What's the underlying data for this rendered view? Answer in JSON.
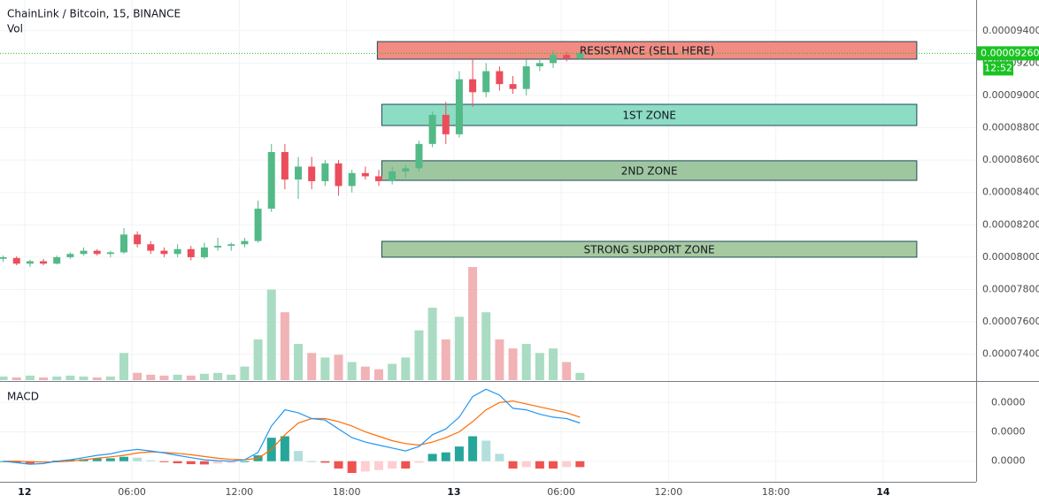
{
  "chart_data": [
    {
      "type": "candlestick",
      "title": "ChainLink / Bitcoin, 15, BINANCE",
      "volume_label": "Vol",
      "x": [
        -1.2,
        -0.45,
        0.3,
        1.05,
        1.8,
        2.55,
        3.3,
        4.05,
        4.8,
        5.55,
        6.3,
        7.05,
        7.8,
        8.55,
        9.3,
        10.05,
        10.8,
        11.55,
        12.3,
        13.05,
        13.8,
        14.55,
        15.3,
        16.05,
        16.8,
        17.55,
        18.3,
        19.05,
        19.8,
        20.55,
        21.3,
        22.05,
        22.8,
        23.55,
        24.3,
        25.05,
        25.8,
        26.55,
        27.3,
        28.05,
        28.8,
        29.55,
        30.3,
        31.05
      ],
      "open": [
        7.99e-05,
        7.995e-05,
        7.96e-05,
        7.975e-05,
        7.96e-05,
        8e-05,
        8.02e-05,
        8.04e-05,
        8.02e-05,
        8.03e-05,
        8.14e-05,
        8.08e-05,
        8.04e-05,
        8.02e-05,
        8.05e-05,
        8e-05,
        8.06e-05,
        8.07e-05,
        8.08e-05,
        8.1e-05,
        8.3e-05,
        8.65e-05,
        8.48e-05,
        8.56e-05,
        8.47e-05,
        8.58e-05,
        8.44e-05,
        8.52e-05,
        8.5e-05,
        8.47e-05,
        8.53e-05,
        8.55e-05,
        8.7e-05,
        8.88e-05,
        8.76e-05,
        9.1e-05,
        9.02e-05,
        9.15e-05,
        9.07e-05,
        9.04e-05,
        9.18e-05,
        9.2e-05,
        9.25e-05,
        9.23e-05
      ],
      "high": [
        8.01e-05,
        8.005e-05,
        7.985e-05,
        7.99e-05,
        8.01e-05,
        8.03e-05,
        8.06e-05,
        8.05e-05,
        8.04e-05,
        8.18e-05,
        8.16e-05,
        8.1e-05,
        8.06e-05,
        8.08e-05,
        8.07e-05,
        8.09e-05,
        8.12e-05,
        8.09e-05,
        8.12e-05,
        8.35e-05,
        8.7e-05,
        8.7e-05,
        8.62e-05,
        8.62e-05,
        8.6e-05,
        8.6e-05,
        8.54e-05,
        8.56e-05,
        8.54e-05,
        8.56e-05,
        8.57e-05,
        8.72e-05,
        8.9e-05,
        8.96e-05,
        9.15e-05,
        9.22e-05,
        9.2e-05,
        9.18e-05,
        9.12e-05,
        9.22e-05,
        9.23e-05,
        9.28e-05,
        9.27e-05,
        9.27e-05
      ],
      "low": [
        7.97e-05,
        7.95e-05,
        7.94e-05,
        7.95e-05,
        7.955e-05,
        7.99e-05,
        8.01e-05,
        8.01e-05,
        8e-05,
        8.02e-05,
        8.06e-05,
        8.02e-05,
        8e-05,
        8e-05,
        7.98e-05,
        7.99e-05,
        8.04e-05,
        8.04e-05,
        8.06e-05,
        8.09e-05,
        8.28e-05,
        8.42e-05,
        8.36e-05,
        8.42e-05,
        8.44e-05,
        8.38e-05,
        8.4e-05,
        8.48e-05,
        8.44e-05,
        8.45e-05,
        8.49e-05,
        8.53e-05,
        8.68e-05,
        8.7e-05,
        8.74e-05,
        8.93e-05,
        8.99e-05,
        9.03e-05,
        9.01e-05,
        9e-05,
        9.15e-05,
        9.17e-05,
        9.21e-05,
        9.22e-05
      ],
      "close": [
        8e-05,
        7.96e-05,
        7.975e-05,
        7.96e-05,
        8e-05,
        8.02e-05,
        8.04e-05,
        8.02e-05,
        8.03e-05,
        8.14e-05,
        8.08e-05,
        8.04e-05,
        8.02e-05,
        8.05e-05,
        8e-05,
        8.06e-05,
        8.07e-05,
        8.08e-05,
        8.1e-05,
        8.3e-05,
        8.65e-05,
        8.48e-05,
        8.56e-05,
        8.47e-05,
        8.58e-05,
        8.44e-05,
        8.52e-05,
        8.5e-05,
        8.47e-05,
        8.53e-05,
        8.55e-05,
        8.7e-05,
        8.88e-05,
        8.76e-05,
        9.1e-05,
        9.02e-05,
        9.15e-05,
        9.07e-05,
        9.04e-05,
        9.18e-05,
        9.2e-05,
        9.25e-05,
        9.23e-05,
        9.26e-05
      ],
      "up_color": "#53b987",
      "down_color": "#eb4d5c",
      "volume": {
        "values": [
          4,
          3,
          5,
          3,
          4,
          5,
          4,
          3,
          4,
          30,
          8,
          6,
          5,
          6,
          5,
          7,
          8,
          6,
          15,
          45,
          100,
          75,
          40,
          30,
          25,
          28,
          20,
          15,
          12,
          18,
          25,
          55,
          80,
          45,
          70,
          125,
          75,
          45,
          35,
          40,
          30,
          35,
          20,
          8
        ],
        "ylim": [
          0,
          420
        ],
        "up_color": "#a9dcc3",
        "down_color": "#f1b3b6"
      },
      "xlim": [
        -1.377,
        53.2
      ],
      "xticks": [
        {
          "value": 0,
          "label": "12"
        },
        {
          "value": 6,
          "label": "06:00"
        },
        {
          "value": 12,
          "label": "12:00"
        },
        {
          "value": 18,
          "label": "18:00"
        },
        {
          "value": 24,
          "label": "13"
        },
        {
          "value": 30,
          "label": "06:00"
        },
        {
          "value": 36,
          "label": "12:00"
        },
        {
          "value": 42,
          "label": "18:00"
        },
        {
          "value": 48,
          "label": "14"
        }
      ],
      "ylim": [
        7.24e-05,
        9.59e-05
      ],
      "yticks": [
        {
          "value": 7.4e-05,
          "label": "0.00007400"
        },
        {
          "value": 7.6e-05,
          "label": "0.00007600"
        },
        {
          "value": 7.8e-05,
          "label": "0.00007800"
        },
        {
          "value": 8e-05,
          "label": "0.00008000"
        },
        {
          "value": 8.2e-05,
          "label": "0.00008200"
        },
        {
          "value": 8.4e-05,
          "label": "0.00008400"
        },
        {
          "value": 8.6e-05,
          "label": "0.00008600"
        },
        {
          "value": 8.8e-05,
          "label": "0.00008800"
        },
        {
          "value": 9e-05,
          "label": "0.00009000"
        },
        {
          "value": 9.2e-05,
          "label": "0.00009200"
        },
        {
          "value": 9.4e-05,
          "label": "0.00009400"
        }
      ],
      "grid": true,
      "last_price": {
        "value": 9.26e-05,
        "label": "0.00009260"
      },
      "countdown": "12:52",
      "last_price_color": "#19c322",
      "zones": [
        {
          "label": "RESISTANCE (SELL HERE)",
          "xlim": [
            19.72,
            49.88
          ],
          "ylim": [
            9.224e-05,
            9.333e-05
          ],
          "color": "#f28b82"
        },
        {
          "label": "1ST ZONE",
          "xlim": [
            19.97,
            49.88
          ],
          "ylim": [
            8.814e-05,
            8.945e-05
          ],
          "color": "#8ddcc4"
        },
        {
          "label": "2ND ZONE",
          "xlim": [
            19.97,
            49.88
          ],
          "ylim": [
            8.475e-05,
            8.596e-05
          ],
          "color": "#9fc79f"
        },
        {
          "label": "STRONG SUPPORT ZONE",
          "xlim": [
            19.97,
            49.88
          ],
          "ylim": [
            8e-05,
            8.098e-05
          ],
          "color": "#a7c9a0"
        }
      ]
    },
    {
      "type": "macd",
      "title": "MACD",
      "macd": {
        "color": "#2196f3",
        "values": [
          0,
          -5e-10,
          -1e-09,
          -8e-10,
          0,
          5e-10,
          1.2e-09,
          2e-09,
          2.5e-09,
          3.5e-09,
          4e-09,
          3.5e-09,
          2.8e-09,
          2e-09,
          1.2e-09,
          5e-10,
          2e-10,
          0,
          5e-10,
          3e-09,
          1.2e-08,
          1.75e-08,
          1.65e-08,
          1.45e-08,
          1.4e-08,
          1.1e-08,
          8e-09,
          6.5e-09,
          5.5e-09,
          4.5e-09,
          3.5e-09,
          5e-09,
          9e-09,
          1.1e-08,
          1.5e-08,
          2.2e-08,
          2.45e-08,
          2.25e-08,
          1.8e-08,
          1.75e-08,
          1.6e-08,
          1.5e-08,
          1.45e-08,
          1.3e-08
        ]
      },
      "signal": {
        "color": "#ff6d00",
        "values": [
          0,
          0,
          -2e-10,
          -3e-10,
          -2e-10,
          0,
          5e-10,
          1e-09,
          1.5e-09,
          2e-09,
          2.8e-09,
          3.2e-09,
          3e-09,
          2.7e-09,
          2.2e-09,
          1.6e-09,
          1e-09,
          6e-10,
          5e-10,
          1e-09,
          4e-09,
          9e-09,
          1.3e-08,
          1.45e-08,
          1.45e-08,
          1.35e-08,
          1.2e-08,
          1e-08,
          8.5e-09,
          7e-09,
          6e-09,
          5.5e-09,
          6.5e-09,
          8e-09,
          1e-08,
          1.35e-08,
          1.75e-08,
          2e-08,
          2.05e-08,
          1.95e-08,
          1.85e-08,
          1.75e-08,
          1.65e-08,
          1.5e-08
        ]
      },
      "histogram": {
        "values": [
          0,
          -5e-10,
          -8e-10,
          -5e-10,
          2e-10,
          5e-10,
          7e-10,
          1e-09,
          1e-09,
          1.5e-09,
          1.2e-09,
          3e-10,
          -2e-10,
          -7e-10,
          -1e-09,
          -1.1e-09,
          -8e-10,
          -6e-10,
          0,
          2e-09,
          8e-09,
          8.5e-09,
          3.5e-09,
          0,
          -5e-10,
          -2.5e-09,
          -4e-09,
          -3.5e-09,
          -3e-09,
          -2.5e-09,
          -2.5e-09,
          -5e-10,
          2.5e-09,
          3e-09,
          5e-09,
          8.5e-09,
          7e-09,
          2.5e-09,
          -2.5e-09,
          -2e-09,
          -2.5e-09,
          -2.5e-09,
          -2e-09,
          -2e-09
        ],
        "up_color": "#26a69a",
        "up_fade_color": "#b2dfdb",
        "down_color": "#ef5350",
        "down_fade_color": "#ffcdd2"
      },
      "ylim": [
        -7e-09,
        2.7e-08
      ],
      "yticks": [
        {
          "value": 0,
          "label": "0.0000"
        },
        {
          "value": 1e-08,
          "label": "0.0000"
        },
        {
          "value": 2e-08,
          "label": "0.0000"
        }
      ],
      "grid": true
    }
  ]
}
